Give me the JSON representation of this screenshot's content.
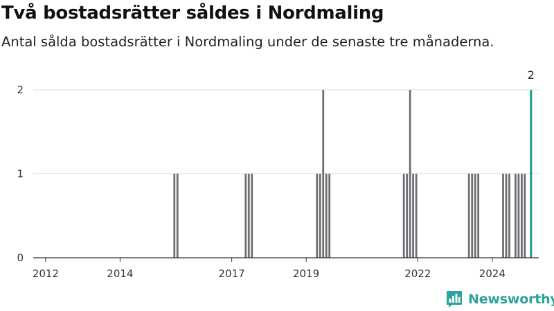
{
  "header": {
    "title": "Två bostadsrätter såldes i Nordmaling",
    "subtitle": "Antal sålda bostadsrätter i Nordmaling under de senaste tre månaderna."
  },
  "brand": {
    "name": "Newsworthy",
    "logo_icon": "newsworthy-bar-chart-icon"
  },
  "colors": {
    "bar": "#6e6e73",
    "highlight": "#1a9b91",
    "brand": "#2ea39a",
    "grid": "#d9d9d9"
  },
  "chart_data": {
    "type": "bar",
    "title": "Två bostadsrätter såldes i Nordmaling",
    "subtitle": "Antal sålda bostadsrätter i Nordmaling under de senaste tre månaderna.",
    "xlabel": "",
    "ylabel": "",
    "y_ticks": [
      0,
      1,
      2
    ],
    "ylim": [
      0,
      2
    ],
    "xlim": [
      "2011-09",
      "2025-04"
    ],
    "x_ticks": [
      "2012",
      "2014",
      "2017",
      "2019",
      "2022",
      "2024"
    ],
    "grid": true,
    "highlight_label": "2",
    "bars": [
      {
        "month": "2015-06",
        "value": 1
      },
      {
        "month": "2015-07",
        "value": 1
      },
      {
        "month": "2017-05",
        "value": 1
      },
      {
        "month": "2017-06",
        "value": 1
      },
      {
        "month": "2017-07",
        "value": 1
      },
      {
        "month": "2019-04",
        "value": 1
      },
      {
        "month": "2019-05",
        "value": 1
      },
      {
        "month": "2019-06",
        "value": 2
      },
      {
        "month": "2019-07",
        "value": 1
      },
      {
        "month": "2019-08",
        "value": 1
      },
      {
        "month": "2021-08",
        "value": 1
      },
      {
        "month": "2021-09",
        "value": 1
      },
      {
        "month": "2021-10",
        "value": 2
      },
      {
        "month": "2021-11",
        "value": 1
      },
      {
        "month": "2021-12",
        "value": 1
      },
      {
        "month": "2023-05",
        "value": 1
      },
      {
        "month": "2023-06",
        "value": 1
      },
      {
        "month": "2023-07",
        "value": 1
      },
      {
        "month": "2023-08",
        "value": 1
      },
      {
        "month": "2024-04",
        "value": 1
      },
      {
        "month": "2024-05",
        "value": 1
      },
      {
        "month": "2024-06",
        "value": 1
      },
      {
        "month": "2024-08",
        "value": 1
      },
      {
        "month": "2024-09",
        "value": 1
      },
      {
        "month": "2024-10",
        "value": 1
      },
      {
        "month": "2024-11",
        "value": 1
      },
      {
        "month": "2025-01",
        "value": 2,
        "highlight": true
      }
    ]
  }
}
